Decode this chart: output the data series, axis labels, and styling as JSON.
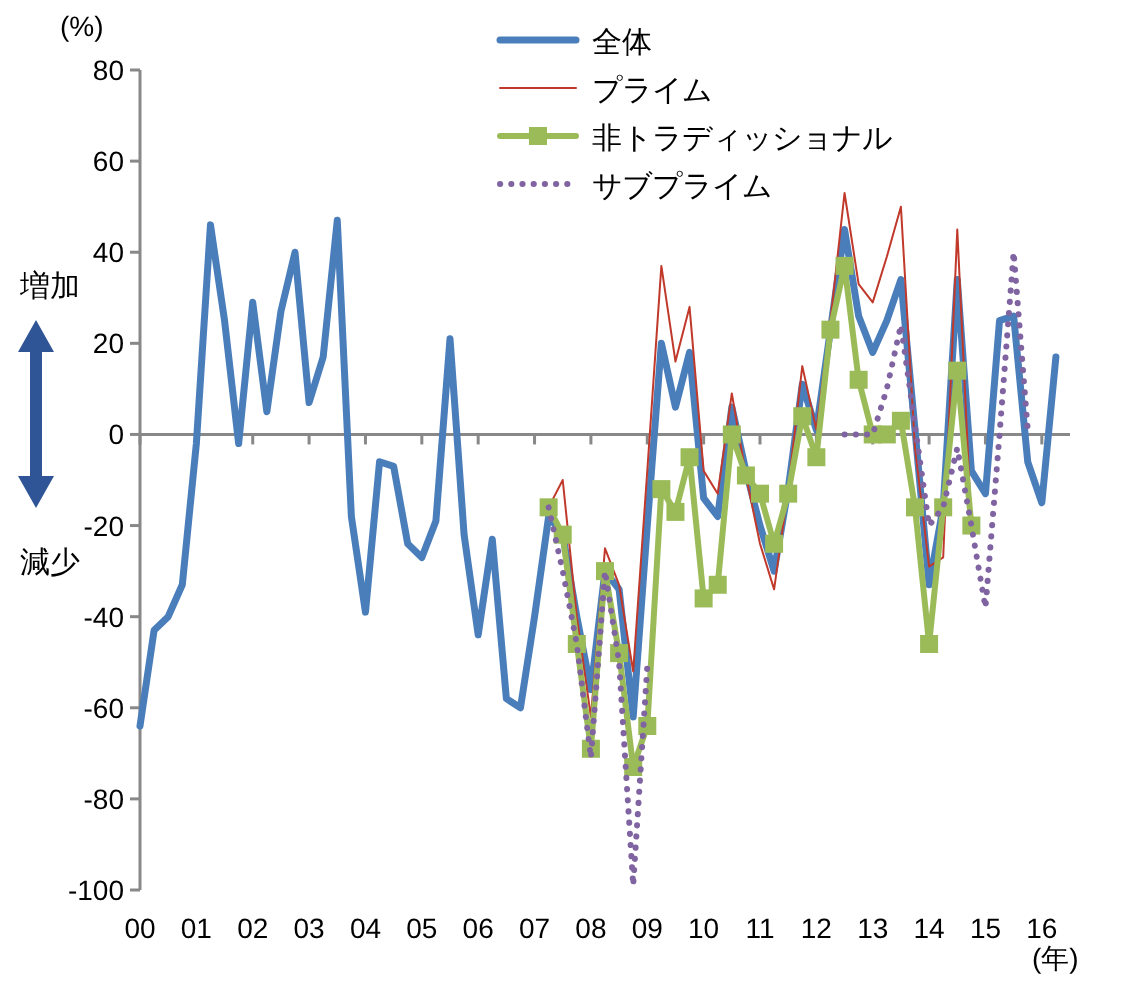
{
  "chart_data": {
    "type": "line",
    "ylabel": "(%)",
    "xlabel": "(年)",
    "annotations": [
      "増加",
      "減少"
    ],
    "x": [
      2000,
      2000.25,
      2000.5,
      2000.75,
      2001,
      2001.25,
      2001.5,
      2001.75,
      2002,
      2002.25,
      2002.5,
      2002.75,
      2003,
      2003.25,
      2003.5,
      2003.75,
      2004,
      2004.25,
      2004.5,
      2004.75,
      2005,
      2005.25,
      2005.5,
      2005.75,
      2006,
      2006.25,
      2006.5,
      2006.75,
      2007,
      2007.25,
      2007.5,
      2007.75,
      2008,
      2008.25,
      2008.5,
      2008.75,
      2009,
      2009.25,
      2009.5,
      2009.75,
      2010,
      2010.25,
      2010.5,
      2010.75,
      2011,
      2011.25,
      2011.5,
      2011.75,
      2012,
      2012.25,
      2012.5,
      2012.75,
      2013,
      2013.25,
      2013.5,
      2013.75,
      2014,
      2014.25,
      2014.5,
      2014.75,
      2015,
      2015.25,
      2015.5,
      2015.75,
      2016,
      2016.25
    ],
    "series": [
      {
        "name": "全体",
        "color": "#4a7ebb",
        "line_style": "solid",
        "marker": "none",
        "values": [
          -64,
          -43,
          -40,
          -33,
          -2,
          46,
          25,
          -2,
          29,
          5,
          27,
          40,
          7,
          17,
          47,
          -18,
          -39,
          -6,
          -7,
          -24,
          -27,
          -19,
          21,
          -22,
          -44,
          -23,
          -58,
          -60,
          -40,
          -18,
          -22,
          -40,
          -56,
          -30,
          -34,
          -62,
          -20,
          20,
          6,
          18,
          -14,
          -18,
          6,
          -8,
          -20,
          -30,
          -12,
          11,
          1,
          23,
          45,
          26,
          18,
          25,
          34,
          1,
          -33,
          -16,
          34,
          -8,
          -13,
          25,
          26,
          -6,
          -15,
          17
        ]
      },
      {
        "name": "プライム",
        "color": "#c0392b",
        "line_style": "solid",
        "marker": "none",
        "values": [
          null,
          null,
          null,
          null,
          null,
          null,
          null,
          null,
          null,
          null,
          null,
          null,
          null,
          null,
          null,
          null,
          null,
          null,
          null,
          null,
          null,
          null,
          null,
          null,
          null,
          null,
          null,
          null,
          null,
          -16,
          -10,
          -40,
          -62,
          -25,
          -33,
          -52,
          -8,
          37,
          16,
          28,
          -8,
          -13,
          9,
          -9,
          -24,
          -34,
          -12,
          15,
          1,
          25,
          53,
          33,
          29,
          39,
          50,
          -3,
          -29,
          -27,
          45,
          -20,
          null,
          null,
          null,
          null,
          null,
          null
        ]
      },
      {
        "name": "非トラディッショナル",
        "color": "#9bbb59",
        "line_style": "solid",
        "marker": "square",
        "values": [
          null,
          null,
          null,
          null,
          null,
          null,
          null,
          null,
          null,
          null,
          null,
          null,
          null,
          null,
          null,
          null,
          null,
          null,
          null,
          null,
          null,
          null,
          null,
          null,
          null,
          null,
          null,
          null,
          null,
          -16,
          -22,
          -46,
          -69,
          -30,
          -48,
          -73,
          -64,
          -12,
          -17,
          -5,
          -36,
          -33,
          0,
          -9,
          -13,
          -24,
          -13,
          4,
          -5,
          23,
          37,
          12,
          0,
          0,
          3,
          -16,
          -46,
          -16,
          14,
          -20,
          null,
          null,
          null,
          null,
          null,
          null
        ]
      },
      {
        "name": "サブプライム",
        "color": "#8064a2",
        "line_style": "dotted",
        "marker": "none",
        "values": [
          null,
          null,
          null,
          null,
          null,
          null,
          null,
          null,
          null,
          null,
          null,
          null,
          null,
          null,
          null,
          null,
          null,
          null,
          null,
          null,
          null,
          null,
          null,
          null,
          null,
          null,
          null,
          null,
          null,
          -16,
          -30,
          -46,
          -71,
          -30,
          -50,
          -99,
          -51,
          null,
          null,
          null,
          null,
          null,
          null,
          null,
          null,
          null,
          null,
          null,
          null,
          null,
          0,
          0,
          0,
          10,
          24,
          2,
          -20,
          -16,
          -3,
          -20,
          -38,
          0,
          40,
          1,
          null,
          null
        ]
      }
    ],
    "xlim": [
      2000,
      2016.5
    ],
    "xticks": [
      {
        "value": 2000,
        "label": "00"
      },
      {
        "value": 2001,
        "label": "01"
      },
      {
        "value": 2002,
        "label": "02"
      },
      {
        "value": 2003,
        "label": "03"
      },
      {
        "value": 2004,
        "label": "04"
      },
      {
        "value": 2005,
        "label": "05"
      },
      {
        "value": 2006,
        "label": "06"
      },
      {
        "value": 2007,
        "label": "07"
      },
      {
        "value": 2008,
        "label": "08"
      },
      {
        "value": 2009,
        "label": "09"
      },
      {
        "value": 2010,
        "label": "10"
      },
      {
        "value": 2011,
        "label": "11"
      },
      {
        "value": 2012,
        "label": "12"
      },
      {
        "value": 2013,
        "label": "13"
      },
      {
        "value": 2014,
        "label": "14"
      },
      {
        "value": 2015,
        "label": "15"
      },
      {
        "value": 2016,
        "label": "16"
      }
    ],
    "ylim": [
      -100,
      80
    ],
    "yticks": [
      -100,
      -80,
      -60,
      -40,
      -20,
      0,
      20,
      40,
      60,
      80
    ],
    "legend": "top"
  }
}
